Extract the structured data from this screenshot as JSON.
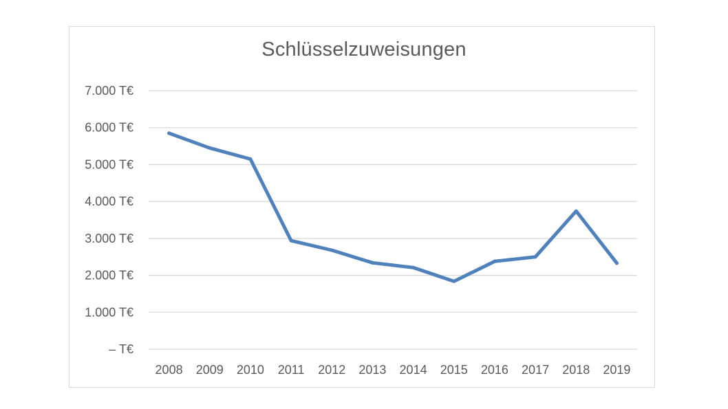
{
  "chart_data": {
    "type": "line",
    "title": "Schlüsselzuweisungen",
    "xlabel": "",
    "ylabel": "",
    "categories": [
      "2008",
      "2009",
      "2010",
      "2011",
      "2012",
      "2013",
      "2014",
      "2015",
      "2016",
      "2017",
      "2018",
      "2019"
    ],
    "series": [
      {
        "values": [
          5850,
          5450,
          5150,
          2940,
          2680,
          2340,
          2210,
          1840,
          2380,
          2500,
          3740,
          2330
        ],
        "color": "#4f81bd"
      }
    ],
    "ylim": [
      0,
      7000
    ],
    "yticks": [
      0,
      1000,
      2000,
      3000,
      4000,
      5000,
      6000,
      7000
    ],
    "ytick_labels": [
      "– T€",
      "1.000 T€",
      "2.000 T€",
      "3.000 T€",
      "4.000 T€",
      "5.000 T€",
      "6.000 T€",
      "7.000 T€"
    ],
    "grid": true,
    "legend": "none"
  }
}
